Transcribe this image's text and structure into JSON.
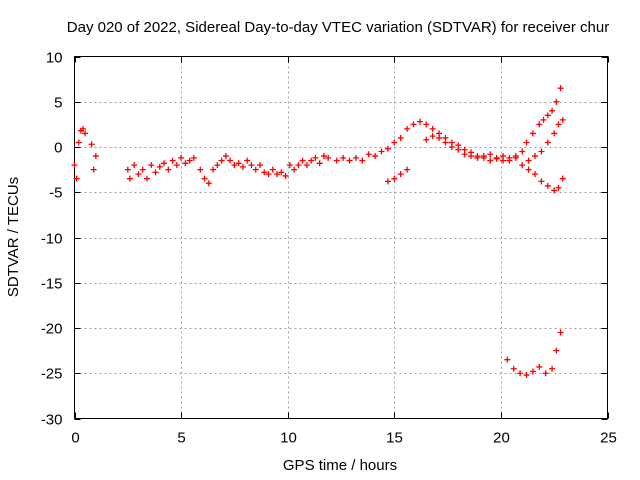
{
  "chart_data": {
    "type": "scatter",
    "title": "Day 020 of 2022, Sidereal Day-to-day VTEC variation (SDTVAR) for receiver chur",
    "xlabel": "GPS time / hours",
    "ylabel": "SDTVAR / TECUs",
    "xlim": [
      0,
      25
    ],
    "ylim": [
      -30,
      10
    ],
    "xticks": [
      0,
      5,
      10,
      15,
      20,
      25
    ],
    "yticks": [
      -30,
      -25,
      -20,
      -15,
      -10,
      -5,
      0,
      5,
      10
    ],
    "xtick_labels": [
      "0",
      "5",
      "10",
      "15",
      "20",
      "25"
    ],
    "ytick_labels": [
      "-30",
      "-25",
      "-20",
      "-15",
      "-10",
      "-5",
      "0",
      "5",
      "10"
    ],
    "grid": true,
    "marker": "+",
    "series": [
      {
        "name": "SDTVAR",
        "color": "#ff0000",
        "x": [
          0.0,
          0.1,
          0.2,
          0.3,
          0.4,
          0.5,
          0.8,
          0.9,
          1.0,
          2.5,
          2.6,
          2.8,
          3.0,
          3.2,
          3.4,
          3.6,
          3.8,
          4.0,
          4.2,
          4.4,
          4.6,
          4.8,
          5.0,
          5.2,
          5.4,
          5.6,
          5.9,
          6.1,
          6.3,
          6.5,
          6.7,
          6.9,
          7.1,
          7.3,
          7.5,
          7.7,
          7.9,
          8.1,
          8.3,
          8.5,
          8.7,
          8.9,
          9.1,
          9.3,
          9.5,
          9.7,
          9.9,
          10.1,
          10.3,
          10.5,
          10.7,
          10.9,
          11.1,
          11.3,
          11.5,
          11.7,
          11.9,
          12.3,
          12.6,
          12.9,
          13.2,
          13.5,
          13.8,
          14.1,
          14.4,
          14.7,
          15.0,
          15.3,
          15.6,
          15.9,
          16.2,
          16.5,
          16.8,
          17.1,
          17.4,
          17.7,
          18.0,
          18.3,
          18.6,
          18.9,
          19.2,
          19.5,
          19.8,
          20.1,
          20.4,
          20.7,
          21.0,
          21.3,
          21.6,
          21.9,
          22.2,
          22.5,
          22.7,
          22.9,
          14.7,
          15.0,
          15.3,
          15.6,
          16.5,
          16.8,
          17.1,
          17.4,
          17.7,
          18.0,
          18.3,
          18.6,
          18.9,
          19.2,
          19.5,
          19.8,
          20.1,
          20.4,
          20.7,
          21.0,
          21.3,
          21.6,
          21.9,
          22.2,
          22.5,
          22.7,
          22.9,
          21.2,
          21.5,
          21.8,
          22.0,
          22.2,
          22.4,
          22.6,
          22.8,
          20.3,
          20.6,
          20.9,
          21.2,
          21.5,
          21.8,
          22.1,
          22.4,
          22.6,
          22.8
        ],
        "y": [
          -2.0,
          -3.5,
          0.5,
          1.8,
          2.0,
          1.5,
          0.3,
          -2.5,
          -1.0,
          -2.5,
          -3.5,
          -2.0,
          -3.0,
          -2.5,
          -3.5,
          -2.0,
          -2.8,
          -2.2,
          -1.8,
          -2.5,
          -1.5,
          -2.0,
          -1.2,
          -1.8,
          -1.5,
          -1.2,
          -2.5,
          -3.5,
          -4.0,
          -2.5,
          -2.0,
          -1.5,
          -1.0,
          -1.5,
          -2.0,
          -1.8,
          -2.2,
          -1.5,
          -2.0,
          -2.5,
          -2.0,
          -2.8,
          -3.0,
          -2.5,
          -3.0,
          -2.8,
          -3.2,
          -2.0,
          -2.5,
          -2.0,
          -1.5,
          -2.0,
          -1.5,
          -1.2,
          -1.8,
          -1.0,
          -1.2,
          -1.5,
          -1.2,
          -1.5,
          -1.2,
          -1.5,
          -0.8,
          -1.0,
          -0.5,
          -0.2,
          0.5,
          1.0,
          2.0,
          2.5,
          2.8,
          2.5,
          2.0,
          1.5,
          1.0,
          0.5,
          0.2,
          -0.3,
          -0.6,
          -1.0,
          -1.2,
          -1.5,
          -1.3,
          -1.0,
          -1.5,
          -1.2,
          -2.0,
          -2.5,
          -3.0,
          -3.8,
          -4.3,
          -4.8,
          -4.5,
          -3.5,
          -3.8,
          -3.5,
          -3.0,
          -2.5,
          0.8,
          1.2,
          1.0,
          0.5,
          0.0,
          -0.3,
          -0.8,
          -1.0,
          -1.2,
          -1.0,
          -0.8,
          -1.2,
          -1.5,
          -1.2,
          -1.0,
          -0.5,
          -1.5,
          -1.0,
          -0.5,
          0.5,
          1.5,
          2.5,
          3.0,
          0.5,
          1.5,
          2.5,
          3.0,
          3.5,
          4.0,
          5.0,
          6.5,
          -23.5,
          -24.5,
          -25.0,
          -25.2,
          -24.8,
          -24.3,
          -25.0,
          -24.5,
          -22.5,
          -20.5
        ]
      }
    ]
  }
}
